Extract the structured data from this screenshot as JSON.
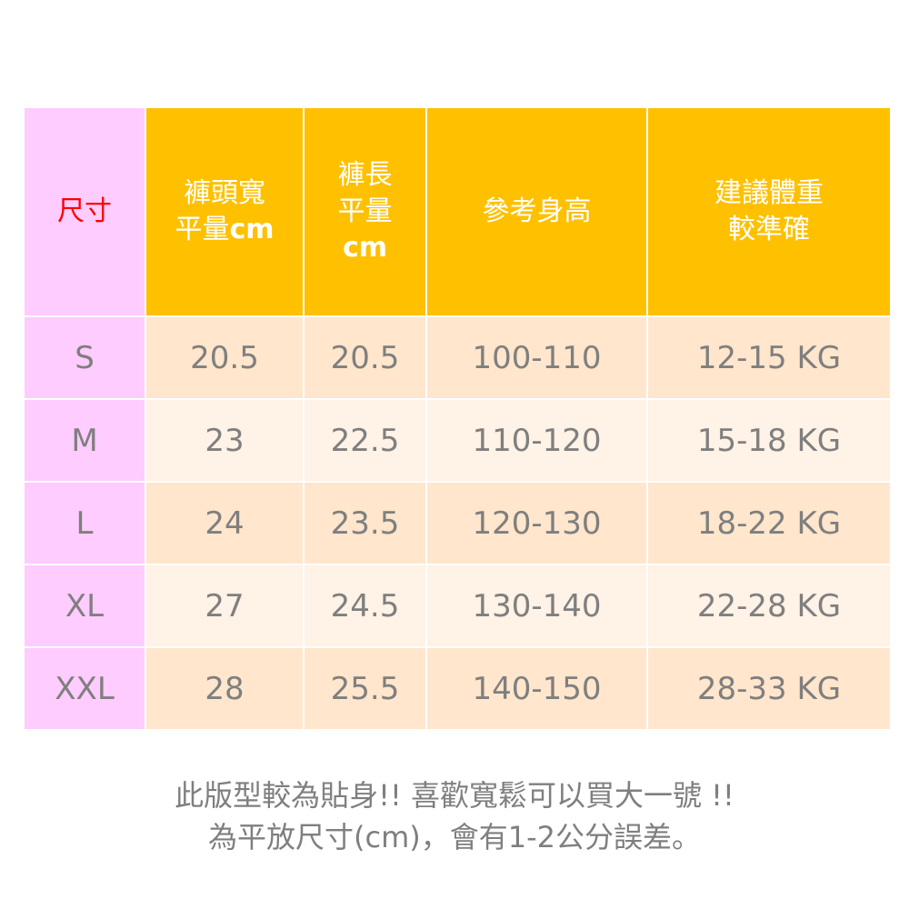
{
  "header": {
    "size": "尺寸",
    "waist_line1": "褲頭寬",
    "waist_line2": "平量",
    "waist_unit": "cm",
    "length_line1": "褲長",
    "length_line2": "平量",
    "length_unit": "cm",
    "height": "參考身高",
    "weight_line1": "建議體重",
    "weight_line2": "較準確"
  },
  "rows": [
    [
      "S",
      "20.5",
      "20.5",
      "100-110",
      "12-15 KG"
    ],
    [
      "M",
      "23",
      "22.5",
      "110-120",
      "15-18 KG"
    ],
    [
      "L",
      "24",
      "23.5",
      "120-130",
      "18-22 KG"
    ],
    [
      "XL",
      "27",
      "24.5",
      "130-140",
      "22-28 KG"
    ],
    [
      "XXL",
      "28",
      "25.5",
      "140-150",
      "28-33 KG"
    ]
  ],
  "note": {
    "line1": "此版型較為貼身!! 喜歡寬鬆可以買大一號 !!",
    "line2": "為平放尺寸(cm)，會有1-2公分誤差。"
  },
  "colors": {
    "header": "#FFC000",
    "size_col": "#FFCCFF",
    "row_odd": "#FFE6CC",
    "row_even": "#FFF2E6",
    "text": "#7F7F7F",
    "size_label": "#FF0000"
  }
}
